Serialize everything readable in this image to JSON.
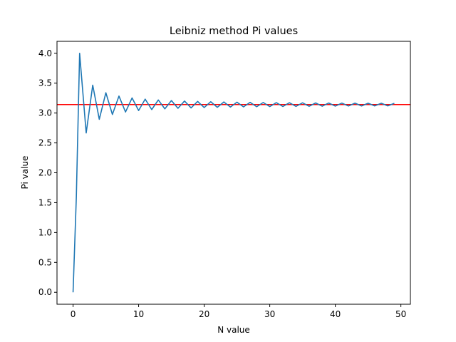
{
  "chart_data": {
    "type": "line",
    "title": "Leibniz method Pi values",
    "xlabel": "N value",
    "ylabel": "Pi value",
    "xlim": [
      -2.45,
      51.45
    ],
    "ylim": [
      -0.2,
      4.2
    ],
    "xticks": [
      0,
      10,
      20,
      30,
      40,
      50
    ],
    "xtick_labels": [
      "0",
      "10",
      "20",
      "30",
      "40",
      "50"
    ],
    "yticks": [
      0.0,
      0.5,
      1.0,
      1.5,
      2.0,
      2.5,
      3.0,
      3.5,
      4.0
    ],
    "ytick_labels": [
      "0.0",
      "0.5",
      "1.0",
      "1.5",
      "2.0",
      "2.5",
      "3.0",
      "3.5",
      "4.0"
    ],
    "grid": false,
    "series": [
      {
        "color": "#1f77b4",
        "x": [
          0,
          0.5,
          1,
          2,
          3,
          4,
          5,
          6,
          7,
          8,
          9,
          10,
          11,
          12,
          13,
          14,
          15,
          16,
          17,
          18,
          19,
          20,
          21,
          22,
          23,
          24,
          25,
          26,
          27,
          28,
          29,
          30,
          31,
          32,
          33,
          34,
          35,
          36,
          37,
          38,
          39,
          40,
          41,
          42,
          43,
          44,
          45,
          46,
          47,
          48,
          49
        ],
        "y": [
          0.0,
          1.6,
          4.0,
          2.6667,
          3.4667,
          2.8952,
          3.3397,
          2.976,
          3.2837,
          3.0171,
          3.2524,
          3.0418,
          3.2323,
          3.0584,
          3.2184,
          3.0703,
          3.2082,
          3.0792,
          3.2004,
          3.0861,
          3.1941,
          3.0916,
          3.1892,
          3.0961,
          3.185,
          3.0999,
          3.1815,
          3.103,
          3.1786,
          3.1057,
          3.1761,
          3.108,
          3.1739,
          3.11,
          3.172,
          3.1117,
          3.1703,
          3.1133,
          3.1688,
          3.1146,
          3.1675,
          3.1158,
          3.1663,
          3.1169,
          3.1652,
          3.1179,
          3.1642,
          3.1188,
          3.1634,
          3.1196,
          3.1626
        ]
      }
    ],
    "reference_lines": [
      {
        "orientation": "horizontal",
        "y": 3.14159,
        "color": "#ff0000"
      }
    ]
  }
}
